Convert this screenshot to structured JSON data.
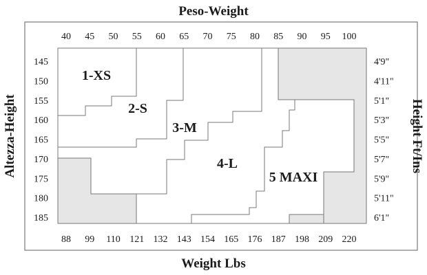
{
  "chart_data": {
    "type": "table",
    "title_top": "Peso-Weight",
    "title_bottom": "Weight Lbs",
    "ylabel_left": "Altezza-Height",
    "ylabel_right": "Height Ft/Ins",
    "weight_kg": [
      "40",
      "45",
      "50",
      "55",
      "60",
      "65",
      "70",
      "75",
      "80",
      "85",
      "90",
      "95",
      "100"
    ],
    "weight_lbs": [
      "88",
      "99",
      "110",
      "121",
      "132",
      "143",
      "154",
      "165",
      "176",
      "187",
      "198",
      "209",
      "220"
    ],
    "height_cm": [
      "145",
      "150",
      "155",
      "160",
      "165",
      "170",
      "175",
      "180",
      "185"
    ],
    "height_ft": [
      "4'9\"",
      "4'11\"",
      "5'1\"",
      "5'3\"",
      "5'5\"",
      "5'7\"",
      "5'9\"",
      "5'11\"",
      "6'1\""
    ],
    "sizes": [
      {
        "label": "1-XS",
        "weight_kg_range": [
          40,
          55
        ],
        "height_cm_range": [
          145,
          160
        ]
      },
      {
        "label": "2-S",
        "weight_kg_range": [
          40,
          67.5
        ],
        "height_cm_range": [
          145,
          167.5
        ]
      },
      {
        "label": "3-M",
        "weight_kg_range": [
          40,
          80
        ],
        "height_cm_range": [
          145,
          185
        ]
      },
      {
        "label": "4-L",
        "weight_kg_range": [
          45,
          85
        ],
        "height_cm_range": [
          145,
          185
        ]
      },
      {
        "label": "5 MAXI",
        "weight_kg_range": [
          67.5,
          100
        ],
        "height_cm_range": [
          145,
          185
        ]
      }
    ],
    "excluded_shading": "#e6e6e6",
    "grid": false
  }
}
